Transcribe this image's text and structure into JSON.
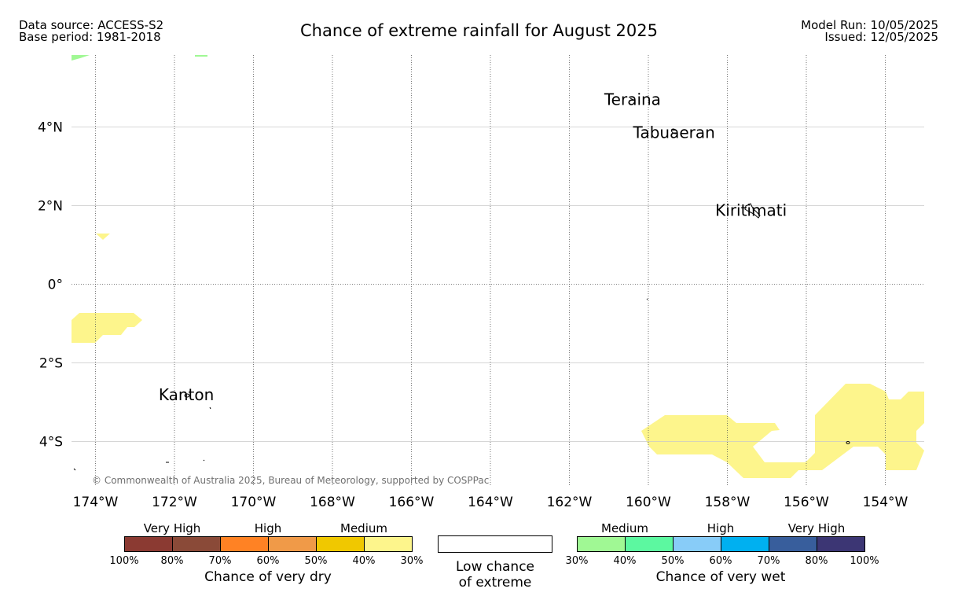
{
  "header": {
    "data_source": "Data source: ACCESS-S2",
    "base_period": "Base period: 1981-2018",
    "title": "Chance of extreme rainfall for August 2025",
    "model_run": "Model Run: 10/05/2025",
    "issued": "Issued: 12/05/2025"
  },
  "map": {
    "lon_ticks": [
      -174,
      -172,
      -170,
      -168,
      -166,
      -164,
      -162,
      -160,
      -158,
      -156,
      -154
    ],
    "lon_labels": [
      "174°W",
      "172°W",
      "170°W",
      "168°W",
      "166°W",
      "164°W",
      "162°W",
      "160°W",
      "158°W",
      "156°W",
      "154°W"
    ],
    "lat_ticks": [
      4,
      2,
      0,
      -2,
      -4
    ],
    "lat_labels": [
      "4°N",
      "2°N",
      "0°",
      "2°S",
      "4°S"
    ],
    "places": [
      {
        "name": "Teraina",
        "lon": -160.4,
        "lat": 4.7
      },
      {
        "name": "Tabuaeran",
        "lon": -159.35,
        "lat": 3.86
      },
      {
        "name": "Kiritimati",
        "lon": -157.4,
        "lat": 1.88
      },
      {
        "name": "Kanton",
        "lon": -171.7,
        "lat": -2.81
      }
    ],
    "copyright": "© Commonwealth of Australia 2025, Bureau of Meteorology, supported by COSPPac",
    "colors": {
      "dry_30_40": "#fdf58c",
      "wet_30_40": "#a0f894"
    }
  },
  "legend": {
    "dry": {
      "level_titles": [
        "Very High",
        "High",
        "Medium"
      ],
      "colors": [
        "#8b3a32",
        "#8a4a38",
        "#ff8224",
        "#f09a48",
        "#f0c800",
        "#fdf58c"
      ],
      "ticks": [
        "100%",
        "80%",
        "70%",
        "60%",
        "50%",
        "40%",
        "30%"
      ],
      "caption": "Chance of very dry"
    },
    "low": {
      "caption_line1": "Low chance",
      "caption_line2": "of extreme"
    },
    "wet": {
      "level_titles": [
        "Medium",
        "High",
        "Very High"
      ],
      "colors": [
        "#a0f894",
        "#5cf8a0",
        "#88ccf8",
        "#00b0f0",
        "#385e9c",
        "#3c3674"
      ],
      "ticks": [
        "30%",
        "40%",
        "50%",
        "60%",
        "70%",
        "80%",
        "100%"
      ],
      "caption": "Chance of very wet"
    }
  }
}
